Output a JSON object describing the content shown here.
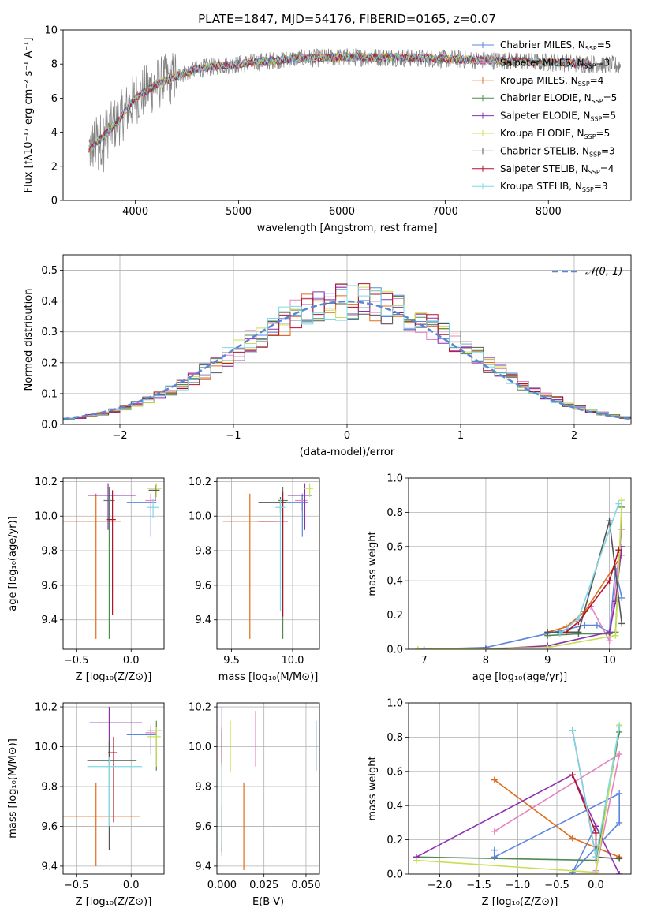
{
  "title": "PLATE=1847, MJD=54176, FIBERID=0165, z=0.07",
  "colors": {
    "grid": "#b0b0b0",
    "data_spectrum": "#808080",
    "normal_curve": "#5a86d6"
  },
  "models": [
    {
      "label": "Chabrier MILES, N",
      "sub": "SSP",
      "suffix": "=5",
      "color": "#5b86dd"
    },
    {
      "label": "Salpeter MILES, N",
      "sub": "SSP",
      "suffix": "=3",
      "color": "#e484c0"
    },
    {
      "label": "Kroupa MILES, N",
      "sub": "SSP",
      "suffix": "=4",
      "color": "#e06c1c"
    },
    {
      "label": "Chabrier ELODIE, N",
      "sub": "SSP",
      "suffix": "=5",
      "color": "#4f8a52"
    },
    {
      "label": "Salpeter ELODIE, N",
      "sub": "SSP",
      "suffix": "=5",
      "color": "#8e2fae"
    },
    {
      "label": "Kroupa ELODIE, N",
      "sub": "SSP",
      "suffix": "=5",
      "color": "#c9df52"
    },
    {
      "label": "Chabrier STELIB, N",
      "sub": "SSP",
      "suffix": "=3",
      "color": "#555555"
    },
    {
      "label": "Salpeter STELIB, N",
      "sub": "SSP",
      "suffix": "=4",
      "color": "#b3122b"
    },
    {
      "label": "Kroupa STELIB, N",
      "sub": "SSP",
      "suffix": "=3",
      "color": "#7fd8e6"
    }
  ],
  "chart_data": [
    {
      "type": "line",
      "name": "spectrum",
      "title": "PLATE=1847, MJD=54176, FIBERID=0165, z=0.07",
      "xlabel": "wavelength [Angstrom, rest frame]",
      "ylabel": "Flux [fλ10⁻¹⁷ erg cm⁻² s⁻¹ A⁻¹]",
      "xlim": [
        3300,
        8800
      ],
      "ylim": [
        0,
        10
      ],
      "xticks": [
        4000,
        5000,
        6000,
        7000,
        8000
      ],
      "yticks": [
        0,
        2,
        4,
        6,
        8,
        10
      ],
      "grid": false,
      "legend": "top-right",
      "continuum": {
        "x": [
          3550,
          3700,
          3850,
          4000,
          4200,
          4400,
          4600,
          4800,
          5000,
          5500,
          6000,
          6500,
          7000,
          7500,
          8000,
          8500,
          8700
        ],
        "y": [
          3.0,
          3.8,
          4.8,
          6.0,
          6.8,
          7.3,
          7.7,
          7.9,
          8.0,
          8.3,
          8.4,
          8.4,
          8.3,
          8.2,
          8.1,
          8.0,
          7.9
        ]
      },
      "data_extent": [
        3550,
        8700
      ],
      "model_extent": [
        3550,
        8400
      ]
    },
    {
      "type": "histogram",
      "name": "residuals",
      "xlabel": "(data-model)/error",
      "ylabel": "Normed distribution",
      "xlim": [
        -2.5,
        2.5
      ],
      "ylim": [
        0,
        0.55
      ],
      "xticks": [
        -2,
        -1,
        0,
        1,
        2
      ],
      "yticks": [
        0.0,
        0.1,
        0.2,
        0.3,
        0.4,
        0.5
      ],
      "grid": true,
      "legend": "top-right",
      "curve_label": "𝒩(0, 1)",
      "bin_width": 0.1,
      "reference_curve": "normal(0,1)"
    },
    {
      "type": "errorbar",
      "name": "age-vs-Z",
      "xlabel": "Z [log₁₀(Z/Z⊙)]",
      "ylabel": "age  [log₁₀(age/yr)]",
      "xlim": [
        -0.62,
        0.3
      ],
      "ylim": [
        9.23,
        10.22
      ],
      "xticks": [
        -0.5,
        0.0
      ],
      "yticks": [
        9.4,
        9.6,
        9.8,
        10.0,
        10.2
      ],
      "grid": true,
      "points": [
        {
          "model": 0,
          "x": 0.18,
          "xerr": [
            0.22,
            0.05
          ],
          "y": 10.08,
          "yerr": [
            0.2,
            0.05
          ]
        },
        {
          "model": 1,
          "x": 0.18,
          "xerr": [
            0.05,
            0.05
          ],
          "y": 10.09,
          "yerr": [
            0.06,
            0.03
          ]
        },
        {
          "model": 2,
          "x": -0.32,
          "xerr": [
            0.3,
            0.23
          ],
          "y": 9.97,
          "yerr": [
            0.68,
            0.16
          ]
        },
        {
          "model": 3,
          "x": -0.2,
          "xerr": [
            0.05,
            0.05
          ],
          "y": 10.09,
          "yerr": [
            0.8,
            0.08
          ]
        },
        {
          "model": 4,
          "x": -0.21,
          "xerr": [
            0.18,
            0.25
          ],
          "y": 10.12,
          "yerr": [
            0.2,
            0.07
          ]
        },
        {
          "model": 5,
          "x": 0.23,
          "xerr": [
            0.08,
            0.05
          ],
          "y": 10.16,
          "yerr": [
            0.05,
            0.03
          ]
        },
        {
          "model": 6,
          "x": 0.22,
          "xerr": [
            0.06,
            0.04
          ],
          "y": 10.15,
          "yerr": [
            0.06,
            0.03
          ]
        },
        {
          "model": 7,
          "x": -0.17,
          "xerr": [
            0.05,
            0.03
          ],
          "y": 9.98,
          "yerr": [
            0.55,
            0.17
          ]
        },
        {
          "model": 8,
          "x": 0.2,
          "xerr": [
            0.05,
            0.05
          ],
          "y": 10.05,
          "yerr": [
            0.06,
            0.05
          ]
        }
      ]
    },
    {
      "type": "errorbar",
      "name": "age-vs-mass",
      "xlabel": "mass [log₁₀(M/M⊙)]",
      "ylabel": "",
      "xlim": [
        9.38,
        10.22
      ],
      "ylim": [
        9.23,
        10.22
      ],
      "xticks": [
        9.5,
        10.0
      ],
      "yticks": [
        9.4,
        9.6,
        9.8,
        10.0,
        10.2
      ],
      "grid": true,
      "points": [
        {
          "model": 0,
          "x": 10.08,
          "xerr": [
            0.2,
            0.05
          ],
          "y": 10.08,
          "yerr": [
            0.2,
            0.05
          ]
        },
        {
          "model": 1,
          "x": 10.07,
          "xerr": [
            0.05,
            0.05
          ],
          "y": 10.09,
          "yerr": [
            0.06,
            0.03
          ]
        },
        {
          "model": 2,
          "x": 9.65,
          "xerr": [
            0.22,
            0.2
          ],
          "y": 9.97,
          "yerr": [
            0.68,
            0.16
          ]
        },
        {
          "model": 3,
          "x": 9.92,
          "xerr": [
            0.04,
            0.04
          ],
          "y": 10.09,
          "yerr": [
            0.8,
            0.08
          ]
        },
        {
          "model": 4,
          "x": 10.1,
          "xerr": [
            0.14,
            0.06
          ],
          "y": 10.12,
          "yerr": [
            0.2,
            0.07
          ]
        },
        {
          "model": 5,
          "x": 10.14,
          "xerr": [
            0.05,
            0.03
          ],
          "y": 10.16,
          "yerr": [
            0.05,
            0.03
          ]
        },
        {
          "model": 6,
          "x": 9.9,
          "xerr": [
            0.18,
            0.05
          ],
          "y": 10.08,
          "yerr": [
            0.06,
            0.03
          ]
        },
        {
          "model": 7,
          "x": 9.92,
          "xerr": [
            0.2,
            0.04
          ],
          "y": 9.97,
          "yerr": [
            0.55,
            0.17
          ]
        },
        {
          "model": 8,
          "x": 9.9,
          "xerr": [
            0.04,
            0.04
          ],
          "y": 10.05,
          "yerr": [
            0.6,
            0.05
          ]
        }
      ]
    },
    {
      "type": "line",
      "name": "mass-weight-vs-age",
      "xlabel": "age  [log₁₀(age/yr)]",
      "ylabel": "mass weight",
      "xlim": [
        6.75,
        10.35
      ],
      "ylim": [
        0,
        1
      ],
      "xticks": [
        7,
        8,
        9,
        10
      ],
      "yticks": [
        0.0,
        0.2,
        0.4,
        0.6,
        0.8,
        1.0
      ],
      "grid": true,
      "series": [
        {
          "model": 0,
          "x": [
            7.0,
            8.0,
            9.6,
            9.8,
            10.0,
            10.1,
            10.2
          ],
          "y": [
            0.0,
            0.01,
            0.14,
            0.14,
            0.1,
            0.47,
            0.3
          ]
        },
        {
          "model": 1,
          "x": [
            9.7,
            10.0,
            10.2
          ],
          "y": [
            0.25,
            0.05,
            0.7
          ]
        },
        {
          "model": 2,
          "x": [
            9.0,
            9.3,
            9.6,
            10.2
          ],
          "y": [
            0.1,
            0.13,
            0.22,
            0.55
          ]
        },
        {
          "model": 3,
          "x": [
            9.0,
            9.5,
            10.0,
            10.1,
            10.2
          ],
          "y": [
            0.08,
            0.09,
            0.09,
            0.1,
            0.83
          ]
        },
        {
          "model": 4,
          "x": [
            8.0,
            9.0,
            10.0,
            10.1,
            10.2
          ],
          "y": [
            0.0,
            0.02,
            0.1,
            0.28,
            0.6
          ]
        },
        {
          "model": 5,
          "x": [
            6.9,
            9.0,
            10.1,
            10.2
          ],
          "y": [
            0.0,
            0.01,
            0.08,
            0.87
          ]
        },
        {
          "model": 6,
          "x": [
            9.0,
            9.5,
            10.0,
            10.2
          ],
          "y": [
            0.1,
            0.1,
            0.75,
            0.15
          ]
        },
        {
          "model": 7,
          "x": [
            9.3,
            9.5,
            10.0,
            10.15
          ],
          "y": [
            0.1,
            0.16,
            0.4,
            0.58
          ]
        },
        {
          "model": 8,
          "x": [
            9.2,
            9.5,
            10.15
          ],
          "y": [
            0.09,
            0.18,
            0.85
          ]
        }
      ]
    },
    {
      "type": "errorbar",
      "name": "mass-vs-Z",
      "xlabel": "Z [log₁₀(Z/Z⊙)]",
      "ylabel": "mass [log₁₀(M/M⊙)]",
      "xlim": [
        -0.62,
        0.3
      ],
      "ylim": [
        9.36,
        10.22
      ],
      "xticks": [
        -0.5,
        0.0
      ],
      "yticks": [
        9.4,
        9.6,
        9.8,
        10.0,
        10.2
      ],
      "grid": true,
      "points": [
        {
          "model": 0,
          "x": 0.18,
          "xerr": [
            0.22,
            0.05
          ],
          "y": 10.06,
          "yerr": [
            0.1,
            0.04
          ]
        },
        {
          "model": 1,
          "x": 0.18,
          "xerr": [
            0.05,
            0.05
          ],
          "y": 10.07,
          "yerr": [
            0.04,
            0.04
          ]
        },
        {
          "model": 2,
          "x": -0.32,
          "xerr": [
            0.3,
            0.4
          ],
          "y": 9.65,
          "yerr": [
            0.25,
            0.17
          ]
        },
        {
          "model": 3,
          "x": 0.23,
          "xerr": [
            0.08,
            0.05
          ],
          "y": 10.08,
          "yerr": [
            0.2,
            0.05
          ]
        },
        {
          "model": 4,
          "x": -0.2,
          "xerr": [
            0.18,
            0.3
          ],
          "y": 10.12,
          "yerr": [
            0.2,
            0.08
          ]
        },
        {
          "model": 5,
          "x": 0.23,
          "xerr": [
            0.08,
            0.04
          ],
          "y": 10.05,
          "yerr": [
            0.15,
            0.05
          ]
        },
        {
          "model": 6,
          "x": -0.2,
          "xerr": [
            0.2,
            0.25
          ],
          "y": 9.93,
          "yerr": [
            0.45,
            0.1
          ]
        },
        {
          "model": 7,
          "x": -0.16,
          "xerr": [
            0.05,
            0.03
          ],
          "y": 9.97,
          "yerr": [
            0.35,
            0.08
          ]
        },
        {
          "model": 8,
          "x": -0.2,
          "xerr": [
            0.2,
            0.3
          ],
          "y": 9.9,
          "yerr": [
            0.3,
            0.05
          ]
        }
      ]
    },
    {
      "type": "errorbar",
      "name": "mass-vs-ebv",
      "xlabel": "E(B-V)",
      "ylabel": "",
      "xlim": [
        -0.003,
        0.058
      ],
      "ylim": [
        9.36,
        10.22
      ],
      "xticks": [
        0.0,
        0.025,
        0.05
      ],
      "yticks": [
        9.4,
        9.6,
        9.8,
        10.0,
        10.2
      ],
      "grid": true,
      "points": [
        {
          "model": 0,
          "x": 0.056,
          "xerr": [
            0,
            0
          ],
          "y": 10.0,
          "yerr": [
            0.12,
            0.13
          ]
        },
        {
          "model": 1,
          "x": 0.02,
          "xerr": [
            0,
            0
          ],
          "y": 10.05,
          "yerr": [
            0.15,
            0.13
          ]
        },
        {
          "model": 2,
          "x": 0.013,
          "xerr": [
            0,
            0
          ],
          "y": 9.6,
          "yerr": [
            0.22,
            0.22
          ]
        },
        {
          "model": 3,
          "x": 0.0,
          "xerr": [
            0,
            0
          ],
          "y": 9.8,
          "yerr": [
            0.35,
            0.3
          ]
        },
        {
          "model": 4,
          "x": 0.0,
          "xerr": [
            0,
            0
          ],
          "y": 10.05,
          "yerr": [
            0.15,
            0.15
          ]
        },
        {
          "model": 5,
          "x": 0.005,
          "xerr": [
            0,
            0
          ],
          "y": 10.0,
          "yerr": [
            0.13,
            0.13
          ]
        },
        {
          "model": 6,
          "x": 0.0,
          "xerr": [
            0,
            0
          ],
          "y": 9.6,
          "yerr": [
            0.13,
            0.1
          ]
        },
        {
          "model": 7,
          "x": 0.0,
          "xerr": [
            0,
            0
          ],
          "y": 10.0,
          "yerr": [
            0.08,
            0.08
          ]
        },
        {
          "model": 8,
          "x": 0.0,
          "xerr": [
            0,
            0
          ],
          "y": 9.7,
          "yerr": [
            0.2,
            0.2
          ]
        }
      ]
    },
    {
      "type": "line",
      "name": "mass-weight-vs-Z",
      "xlabel": "Z [log₁₀(Z/Z⊙)]",
      "ylabel": "mass weight",
      "xlim": [
        -2.4,
        0.45
      ],
      "ylim": [
        0,
        1
      ],
      "xticks": [
        -2.0,
        -1.5,
        -1.0,
        -0.5,
        0.0
      ],
      "yticks": [
        0.0,
        0.2,
        0.4,
        0.6,
        0.8,
        1.0
      ],
      "grid": true,
      "series": [
        {
          "model": 0,
          "x": [
            -1.3,
            -1.3,
            0.3,
            0.3,
            -0.3,
            0.0
          ],
          "y": [
            0.14,
            0.1,
            0.47,
            0.3,
            0.01,
            0.28
          ]
        },
        {
          "model": 1,
          "x": [
            -1.3,
            0.3,
            0.0
          ],
          "y": [
            0.25,
            0.7,
            0.02
          ]
        },
        {
          "model": 2,
          "x": [
            -1.3,
            -0.3,
            0.3
          ],
          "y": [
            0.55,
            0.21,
            0.1
          ]
        },
        {
          "model": 3,
          "x": [
            -2.3,
            0.0,
            0.3
          ],
          "y": [
            0.1,
            0.08,
            0.83
          ]
        },
        {
          "model": 4,
          "x": [
            -2.3,
            -0.3,
            0.0,
            0.3
          ],
          "y": [
            0.1,
            0.58,
            0.28,
            0.0
          ]
        },
        {
          "model": 5,
          "x": [
            -2.3,
            0.0,
            0.3
          ],
          "y": [
            0.08,
            0.01,
            0.87
          ]
        },
        {
          "model": 6,
          "x": [
            -0.3,
            0.0,
            0.3
          ],
          "y": [
            0.84,
            0.1,
            0.09
          ]
        },
        {
          "model": 7,
          "x": [
            -0.3,
            0.0,
            0.0
          ],
          "y": [
            0.58,
            0.24,
            0.1
          ]
        },
        {
          "model": 8,
          "x": [
            -0.3,
            0.0,
            0.3
          ],
          "y": [
            0.84,
            0.1,
            0.86
          ]
        }
      ]
    }
  ]
}
